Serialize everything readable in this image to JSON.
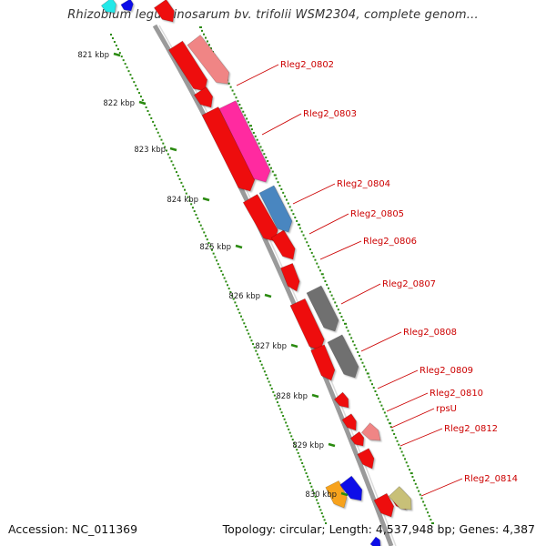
{
  "title": "Rhizobium leguminosarum bv. trifolii WSM2304, complete genom...",
  "accession": "Accession: NC_011369",
  "summary": "Topology: circular; Length: 4,537,948 bp; Genes: 4,387",
  "ticks": [
    "821 kbp",
    "822 kbp",
    "823 kbp",
    "824 kbp",
    "825 kbp",
    "826 kbp",
    "827 kbp",
    "828 kbp",
    "829 kbp",
    "830 kbp"
  ],
  "genes": [
    "Rleg2_0802",
    "Rleg2_0803",
    "Rleg2_0804",
    "Rleg2_0805",
    "Rleg2_0806",
    "Rleg2_0807",
    "Rleg2_0808",
    "Rleg2_0809",
    "Rleg2_0810",
    "rpsU",
    "Rleg2_0812",
    "Rleg2_0814"
  ],
  "colors": {
    "backbone": "#9a9a9a",
    "dots": "#2a8a10",
    "label": "#cc0000",
    "gene_red": "#ee1111",
    "gene_pink": "#f08585",
    "gene_magenta": "#ff2aa0",
    "gene_steelblue": "#4a86c0",
    "gene_gray": "#707070",
    "gene_orange": "#f7a21b",
    "gene_blue": "#1010e8",
    "gene_khaki": "#c8c078",
    "gene_cyan": "#21e8e8"
  }
}
